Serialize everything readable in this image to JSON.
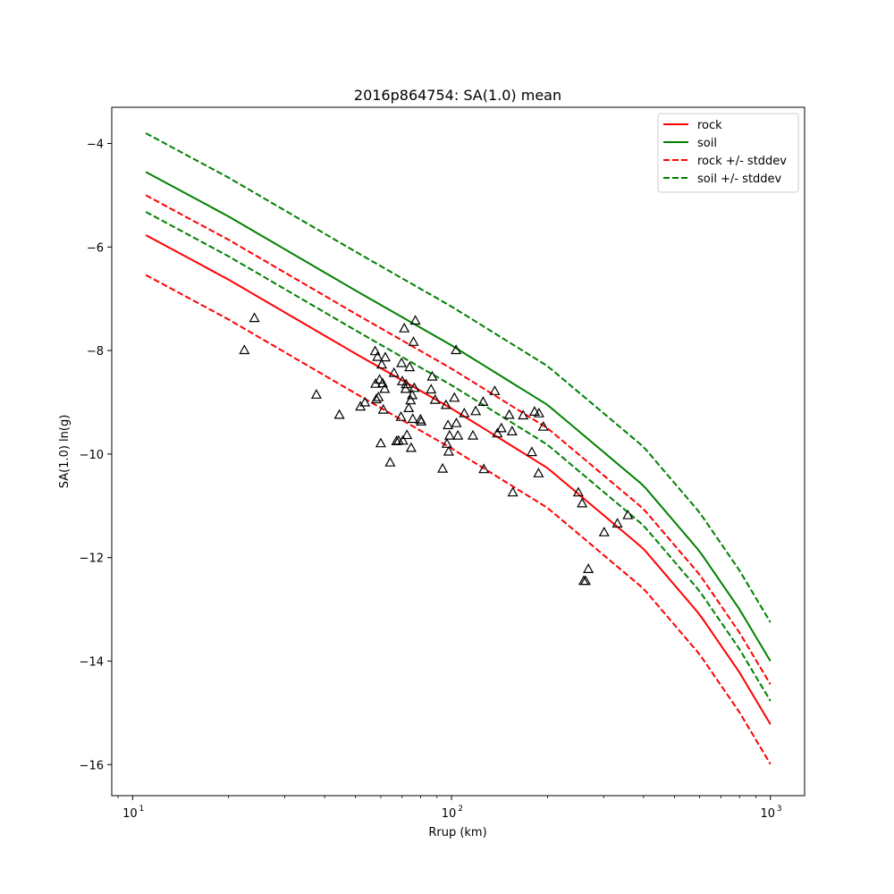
{
  "chart_data": {
    "type": "scatter",
    "title": "2016p864754: SA(1.0) mean",
    "xlabel": "Rrup (km)",
    "ylabel": "SA(1.0) ln(g)",
    "xscale": "log",
    "xlim": [
      8.6,
      1280
    ],
    "ylim": [
      -16.6,
      -3.3
    ],
    "x_ticks": [
      10,
      100,
      1000
    ],
    "x_tick_labels": [
      "10",
      "10",
      "10"
    ],
    "x_tick_exponents": [
      "1",
      "2",
      "3"
    ],
    "y_ticks": [
      -16,
      -14,
      -12,
      -10,
      -8,
      -6,
      -4
    ],
    "y_tick_labels": [
      "−16",
      "−14",
      "−12",
      "−10",
      "−8",
      "−6",
      "−4"
    ],
    "grid": false,
    "legend_position": "top-right",
    "series": [
      {
        "name": "rock",
        "kind": "line",
        "style": "solid",
        "color": "#ff0000",
        "x": [
          11,
          20,
          50,
          100,
          200,
          400,
          600,
          800,
          1000
        ],
        "y": [
          -5.77,
          -6.63,
          -8.06,
          -9.12,
          -10.27,
          -11.83,
          -13.1,
          -14.22,
          -15.22
        ]
      },
      {
        "name": "soil",
        "kind": "line",
        "style": "solid",
        "color": "#008000",
        "x": [
          11,
          20,
          50,
          100,
          200,
          400,
          600,
          800,
          1000
        ],
        "y": [
          -4.55,
          -5.41,
          -6.84,
          -7.9,
          -9.05,
          -10.61,
          -11.88,
          -13.0,
          -14.0
        ]
      },
      {
        "name": "rock +/- stddev",
        "kind": "line",
        "style": "dashed",
        "color": "#ff0000",
        "x": [
          11,
          20,
          50,
          100,
          200,
          400,
          600,
          800,
          1000
        ],
        "y": [
          -5.0,
          -5.86,
          -7.29,
          -8.35,
          -9.5,
          -11.06,
          -12.33,
          -13.45,
          -14.45
        ]
      },
      {
        "name": "",
        "kind": "line",
        "style": "dashed",
        "color": "#ff0000",
        "x": [
          11,
          20,
          50,
          100,
          200,
          400,
          600,
          800,
          1000
        ],
        "y": [
          -6.54,
          -7.4,
          -8.83,
          -9.89,
          -11.04,
          -12.6,
          -13.87,
          -14.99,
          -15.99
        ]
      },
      {
        "name": "soil +/- stddev",
        "kind": "line",
        "style": "dashed",
        "color": "#008000",
        "x": [
          11,
          20,
          50,
          100,
          200,
          400,
          600,
          800,
          1000
        ],
        "y": [
          -3.8,
          -4.66,
          -6.09,
          -7.15,
          -8.3,
          -9.86,
          -11.13,
          -12.25,
          -13.25
        ]
      },
      {
        "name": "",
        "kind": "line",
        "style": "dashed",
        "color": "#008000",
        "x": [
          11,
          20,
          50,
          100,
          200,
          400,
          600,
          800,
          1000
        ],
        "y": [
          -5.32,
          -6.18,
          -7.61,
          -8.67,
          -9.82,
          -11.38,
          -12.65,
          -13.77,
          -14.77
        ]
      },
      {
        "name": "",
        "kind": "scatter",
        "marker": "triangle",
        "color": "#000000",
        "x": [
          22.4,
          24.1,
          37.7,
          44.5,
          51.8,
          53.5,
          57.6,
          57.8,
          58.1,
          58.6,
          59.0,
          59.5,
          60.0,
          60.4,
          60.8,
          61.1,
          61.7,
          62.0,
          64.2,
          66.0,
          67.2,
          68.2,
          69.4,
          69.7,
          70.1,
          70.4,
          71.1,
          71.8,
          72.0,
          72.5,
          73.4,
          73.9,
          74.4,
          74.7,
          75.3,
          75.6,
          76.0,
          76.4,
          77.0,
          79.9,
          80.3,
          86.3,
          87.0,
          88.8,
          93.8,
          96.1,
          96.7,
          97.5,
          98.0,
          98.6,
          102.1,
          103.3,
          103.6,
          104.7,
          109.6,
          116.7,
          119.1,
          125.6,
          126.3,
          136.6,
          139.3,
          143.3,
          151.7,
          154.8,
          155.6,
          167.7,
          178.6,
          182.1,
          187.4,
          188.0,
          194.1,
          249.8,
          256.8,
          259.9,
          263.2,
          268.5,
          301.1,
          331.2,
          357.3
        ],
        "y": [
          -7.99,
          -7.37,
          -8.85,
          -9.24,
          -9.08,
          -9.0,
          -8.01,
          -8.64,
          -8.94,
          -8.12,
          -8.9,
          -8.56,
          -9.79,
          -8.27,
          -8.63,
          -9.14,
          -8.74,
          -8.13,
          -10.16,
          -8.43,
          -9.75,
          -9.74,
          -9.28,
          -8.24,
          -8.59,
          -9.74,
          -7.57,
          -8.74,
          -8.65,
          -9.63,
          -9.11,
          -8.32,
          -8.96,
          -9.88,
          -8.86,
          -9.32,
          -7.83,
          -8.72,
          -7.42,
          -9.33,
          -9.37,
          -8.75,
          -8.5,
          -8.95,
          -10.28,
          -9.05,
          -9.8,
          -9.44,
          -9.95,
          -9.64,
          -8.91,
          -7.99,
          -9.4,
          -9.64,
          -9.21,
          -9.64,
          -9.17,
          -8.99,
          -10.29,
          -8.78,
          -9.6,
          -9.5,
          -9.24,
          -9.56,
          -10.74,
          -9.25,
          -9.96,
          -9.18,
          -10.37,
          -9.21,
          -9.47,
          -10.74,
          -10.95,
          -12.45,
          -12.45,
          -12.22,
          -11.51,
          -11.34,
          -11.18
        ]
      }
    ]
  }
}
